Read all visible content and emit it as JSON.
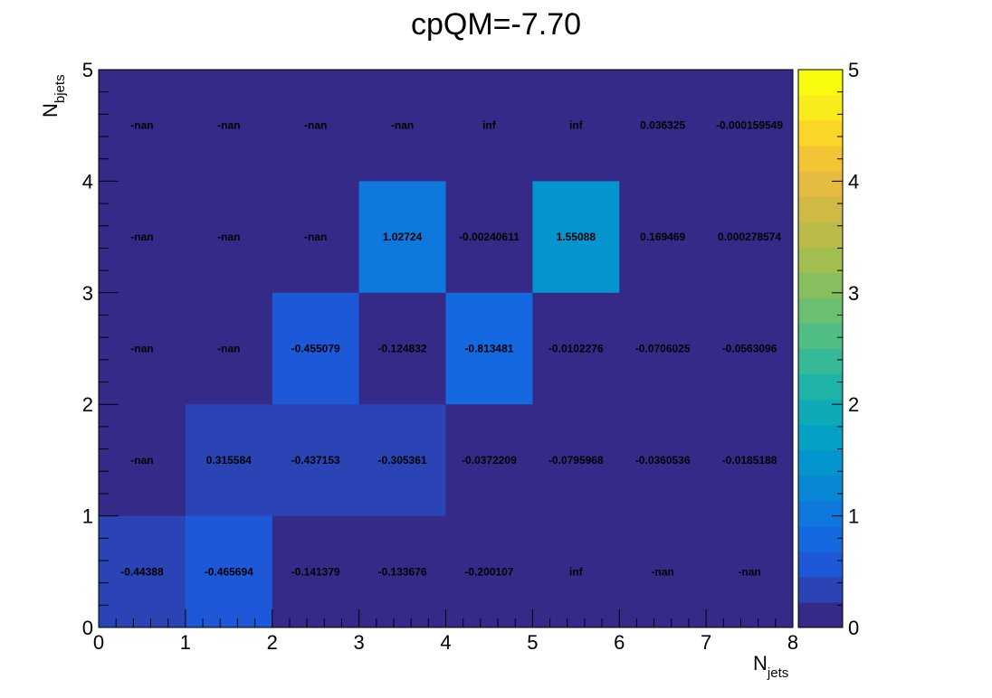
{
  "chart_data": {
    "type": "heatmap",
    "title": "cpQM=-7.70",
    "xlabel": {
      "main": "N",
      "sub": "jets"
    },
    "ylabel": {
      "main": "N",
      "sub": "bjets"
    },
    "x_edges": [
      0,
      1,
      2,
      3,
      4,
      5,
      6,
      7,
      8
    ],
    "y_edges": [
      0,
      1,
      2,
      3,
      4,
      5
    ],
    "xlim": [
      0,
      8
    ],
    "ylim": [
      0,
      5
    ],
    "x_ticks": [
      "0",
      "1",
      "2",
      "3",
      "4",
      "5",
      "6",
      "7",
      "8"
    ],
    "y_ticks": [
      "0",
      "1",
      "2",
      "3",
      "4",
      "5"
    ],
    "z_range": [
      0,
      5
    ],
    "colorbar_ticks": [
      "0",
      "1",
      "2",
      "3",
      "4",
      "5"
    ],
    "colorscale": [
      "#352a87",
      "#2b44b5",
      "#1d58d9",
      "#1469e1",
      "#0f78dc",
      "#0887d4",
      "#0595ce",
      "#05a1c5",
      "#0eabb7",
      "#1fb3a7",
      "#35b996",
      "#50bd84",
      "#6bbf70",
      "#87bf5e",
      "#a2bd50",
      "#bbbb47",
      "#d1b946",
      "#e4bc40",
      "#f3c534",
      "#f9d628",
      "#faeb1c",
      "#f9fb0e"
    ],
    "grid": false,
    "legend": "none",
    "rows": [
      {
        "y_bin": [
          4,
          5
        ],
        "labels": [
          "-nan",
          "-nan",
          "-nan",
          "-nan",
          "inf",
          "inf",
          "0.036325",
          "-0.000159549"
        ],
        "color_values": [
          0,
          0,
          0,
          0,
          0,
          0,
          0.036325,
          -0.000159549
        ]
      },
      {
        "y_bin": [
          3,
          4
        ],
        "labels": [
          "-nan",
          "-nan",
          "-nan",
          "1.02724",
          "-0.00240611",
          "1.55088",
          "0.169469",
          "0.000278574"
        ],
        "color_values": [
          0,
          0,
          0,
          1.02724,
          -0.00240611,
          1.55088,
          0.169469,
          0.000278574
        ]
      },
      {
        "y_bin": [
          2,
          3
        ],
        "labels": [
          "-nan",
          "-nan",
          "-0.455079",
          "-0.124832",
          "-0.813481",
          "-0.0102276",
          "-0.0706025",
          "-0.0563096"
        ],
        "color_values": [
          0,
          0,
          0.455079,
          0.124832,
          0.813481,
          0.0102276,
          0.0706025,
          0.0563096
        ]
      },
      {
        "y_bin": [
          1,
          2
        ],
        "labels": [
          "-nan",
          "0.315584",
          "-0.437153",
          "-0.305361",
          "-0.0372209",
          "-0.0795968",
          "-0.0360536",
          "-0.0185188"
        ],
        "color_values": [
          0,
          0.315584,
          0.437153,
          0.305361,
          0.0372209,
          0.0795968,
          0.0360536,
          0.0185188
        ]
      },
      {
        "y_bin": [
          0,
          1
        ],
        "labels": [
          "-0.44388",
          "-0.465694",
          "-0.141379",
          "-0.133676",
          "-0.200107",
          "inf",
          "-nan",
          "-nan"
        ],
        "color_values": [
          0.44388,
          0.465694,
          0.141379,
          0.133676,
          0.200107,
          0,
          0,
          0
        ]
      }
    ]
  }
}
